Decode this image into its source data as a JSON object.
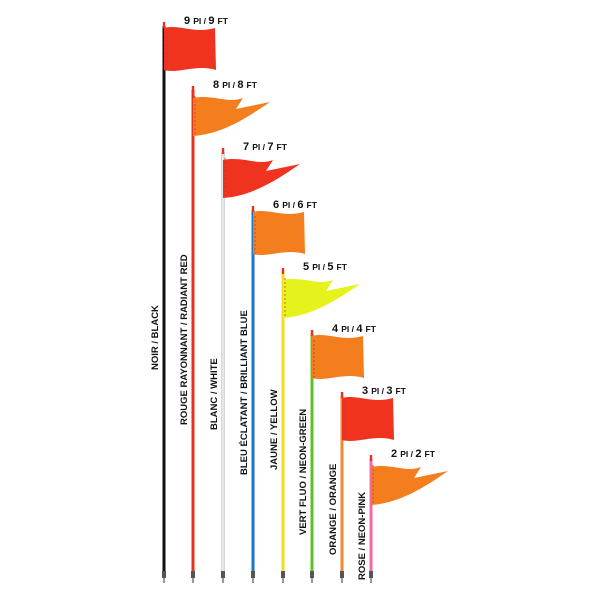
{
  "flags": [
    {
      "height_label_num": "9",
      "height_label": "PI / 9",
      "unit": "FT",
      "color_label": "NOIR / BLACK",
      "pole_color": "#111111",
      "flag_color": "#f0331f",
      "flag_shape": "rectangle"
    },
    {
      "height_label_num": "8",
      "height_label": "PI / 8",
      "unit": "FT",
      "color_label": "ROUGE RAYONNANT / RADIANT RED",
      "pole_color": "#e8321e",
      "flag_color": "#f47d1e",
      "flag_shape": "pennant"
    },
    {
      "height_label_num": "7",
      "height_label": "PI / 7",
      "unit": "FT",
      "color_label": "BLANC / WHITE",
      "pole_color": "#e6e6e6",
      "flag_color": "#f0331f",
      "flag_shape": "pennant"
    },
    {
      "height_label_num": "6",
      "height_label": "PI / 6",
      "unit": "FT",
      "color_label": "BLEU ÉCLATANT / BRILLIANT BLUE",
      "pole_color": "#1a78c8",
      "flag_color": "#f47d1e",
      "flag_shape": "rectangle"
    },
    {
      "height_label_num": "5",
      "height_label": "PI / 5",
      "unit": "FT",
      "color_label": "JAUNE / YELLOW",
      "pole_color": "#f2dc1c",
      "flag_color": "#e6f21c",
      "flag_shape": "pennant"
    },
    {
      "height_label_num": "4",
      "height_label": "PI / 4",
      "unit": "FT",
      "color_label": "VERT FLUO / NEON-GREEN",
      "pole_color": "#5cc02a",
      "flag_color": "#f47d1e",
      "flag_shape": "rectangle"
    },
    {
      "height_label_num": "3",
      "height_label": "PI / 3",
      "unit": "FT",
      "color_label": "ORANGE / ORANGE",
      "pole_color": "#f08a30",
      "flag_color": "#f0331f",
      "flag_shape": "rectangle"
    },
    {
      "height_label_num": "2",
      "height_label": "PI / 2",
      "unit": "FT",
      "color_label": "ROSE / NEON-PINK",
      "pole_color": "#f06aa8",
      "flag_color": "#f47d1e",
      "flag_shape": "pennant"
    }
  ]
}
